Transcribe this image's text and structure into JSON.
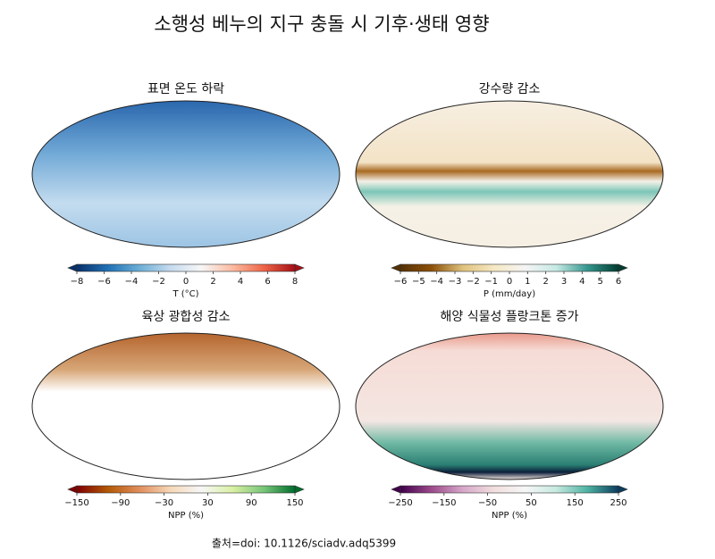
{
  "title": "소행성 베누의 지구 충돌 시 기후·생태 영향",
  "panels": [
    {
      "title": "표면 온도 하락",
      "colorbar_label": "T (°C)",
      "lim": [
        -8,
        8
      ],
      "colors": [
        "#08306b",
        "#2171b5",
        "#6baed6",
        "#c6dbef",
        "#f7f7f7",
        "#fcbba1",
        "#ef6548",
        "#a50f15"
      ],
      "ticks": [
        {
          "value": -8,
          "label": "−8"
        },
        {
          "value": -6,
          "label": "−6"
        },
        {
          "value": -4,
          "label": "−4"
        },
        {
          "value": -2,
          "label": "−2"
        },
        0,
        2,
        4,
        6,
        8
      ]
    },
    {
      "title": "강수량 감소",
      "colorbar_label": "P (mm/day)",
      "lim": [
        -6,
        6
      ],
      "colors": [
        "#543005",
        "#8c510a",
        "#dfc27d",
        "#f6e8c3",
        "#f5f5f5",
        "#c7eae5",
        "#35978f",
        "#003c30"
      ],
      "ticks": [
        {
          "value": -6,
          "label": "−6"
        },
        {
          "value": -5,
          "label": "−5"
        },
        {
          "value": -4,
          "label": "−4"
        },
        {
          "value": -3,
          "label": "−3"
        },
        {
          "value": -2,
          "label": "−2"
        },
        {
          "value": -1,
          "label": "−1"
        },
        0,
        1,
        2,
        3,
        4,
        5,
        6
      ]
    },
    {
      "title": "육상 광합성 감소",
      "colorbar_label": "NPP (%)",
      "lim": [
        -150,
        150
      ],
      "colors": [
        "#7f0000",
        "#b35806",
        "#e08e5b",
        "#f6d8b8",
        "#f7f7f7",
        "#d9f0a3",
        "#78c679",
        "#006d2c"
      ],
      "ticks": [
        {
          "value": -150,
          "label": "−150"
        },
        {
          "value": -90,
          "label": "−90"
        },
        {
          "value": -30,
          "label": "−30"
        },
        30,
        90,
        150
      ]
    },
    {
      "title": "해양 식물성 플랑크톤 증가",
      "colorbar_label": "NPP (%)",
      "lim": [
        -250,
        250
      ],
      "colors": [
        "#40004b",
        "#9c4a8a",
        "#d6a7c9",
        "#f2dede",
        "#f7f7f7",
        "#c7e9e0",
        "#4eb3a3",
        "#0b3c5d"
      ],
      "ticks": [
        {
          "value": -250,
          "label": "−250"
        },
        {
          "value": -150,
          "label": "−150"
        },
        {
          "value": -50,
          "label": "−50"
        },
        50,
        150,
        250
      ]
    }
  ],
  "source": "출처=doi: 10.1126/sciadv.adq5399"
}
